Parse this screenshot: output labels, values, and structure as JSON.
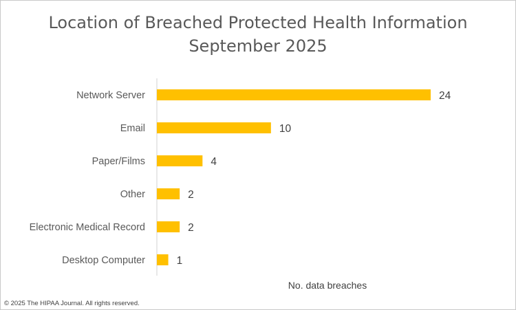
{
  "chart_data": {
    "type": "bar",
    "orientation": "horizontal",
    "title": "Location of Breached Protected Health Information",
    "subtitle": "September 2025",
    "xlabel": "No. data breaches",
    "ylabel": "",
    "categories": [
      "Network Server",
      "Email",
      "Paper/Films",
      "Other",
      "Electronic Medical Record",
      "Desktop Computer"
    ],
    "values": [
      24,
      10,
      4,
      2,
      2,
      1
    ],
    "xlim": [
      0,
      24
    ],
    "grid": false,
    "legend": "none",
    "bar_color": "#FFC000"
  },
  "footer": {
    "copyright": "© 2025 The HIPAA Journal. All rights reserved."
  }
}
